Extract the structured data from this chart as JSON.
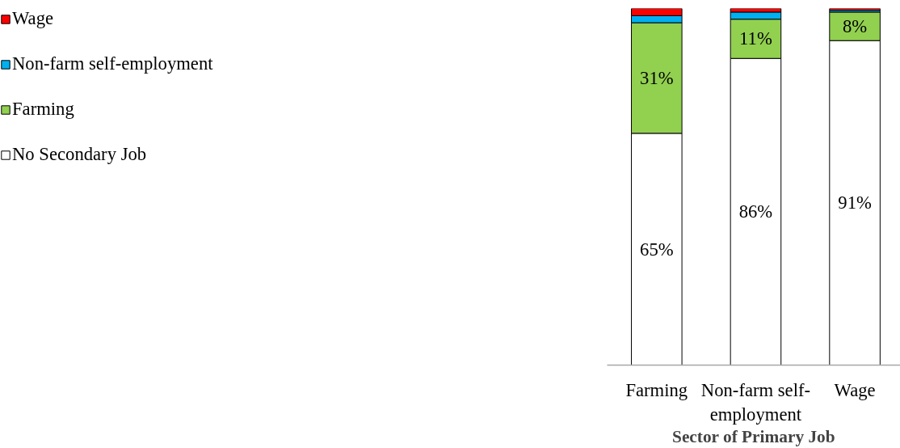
{
  "chart_data": {
    "type": "bar",
    "stacked": true,
    "xlabel": "Sector of Primary Job",
    "categories": [
      "Farming",
      "Non-farm self-employment",
      "Wage"
    ],
    "series": [
      {
        "name": "No Secondary Job",
        "color": "#ffffff",
        "values": [
          65,
          86,
          91
        ],
        "value_labels": [
          "65%",
          "86%",
          "91%"
        ]
      },
      {
        "name": "Farming",
        "color": "#92d050",
        "values": [
          31,
          11,
          8
        ],
        "value_labels": [
          "31%",
          "11%",
          "8%"
        ]
      },
      {
        "name": "Non-farm self-employment",
        "color": "#00b0f0",
        "values": [
          2,
          2,
          0.5
        ]
      },
      {
        "name": "Wage",
        "color": "#ff0000",
        "values": [
          2,
          1,
          0.5
        ]
      }
    ],
    "legend": "left",
    "grid": false
  }
}
